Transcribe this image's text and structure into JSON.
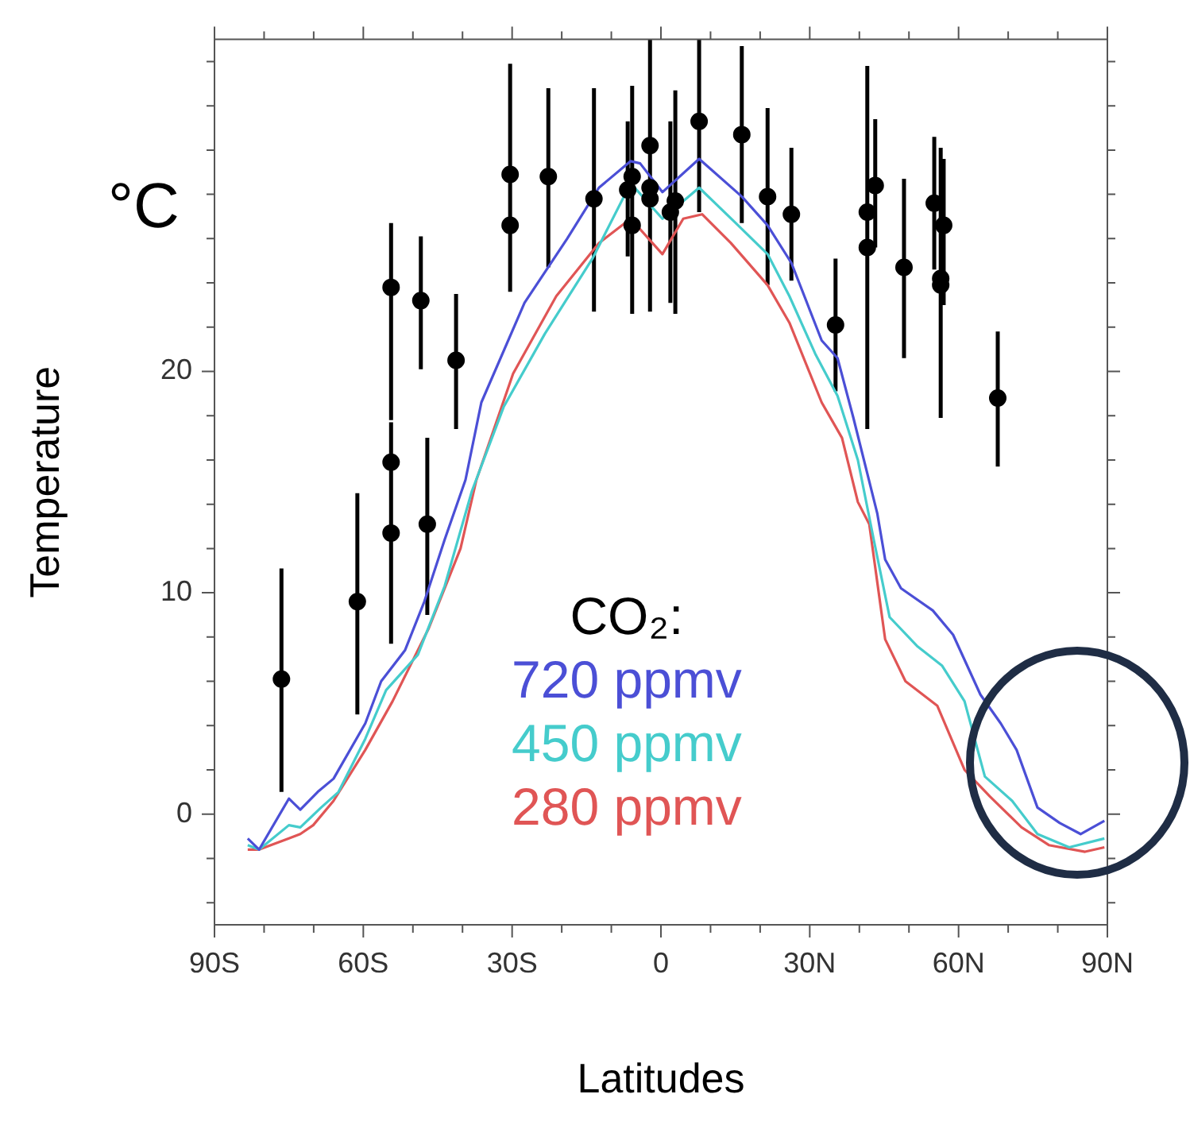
{
  "chart_data": {
    "type": "line",
    "xlabel": "Latitudes",
    "ylabel": "Temperature",
    "legend_title": "CO₂:",
    "legend": "bottom",
    "grid": false,
    "annotations": [
      "°C"
    ],
    "xlim": [
      -90,
      90
    ],
    "ylim": [
      -5,
      35
    ],
    "xticks": [
      {
        "value": -90,
        "label": "90S"
      },
      {
        "value": -80,
        "label": null
      },
      {
        "value": -70,
        "label": null
      },
      {
        "value": -60,
        "label": "60S"
      },
      {
        "value": -50,
        "label": null
      },
      {
        "value": -40,
        "label": null
      },
      {
        "value": -30,
        "label": "30S"
      },
      {
        "value": -20,
        "label": null
      },
      {
        "value": -10,
        "label": null
      },
      0,
      {
        "value": 10,
        "label": null
      },
      {
        "value": 20,
        "label": null
      },
      {
        "value": 30,
        "label": "30N"
      },
      {
        "value": 40,
        "label": null
      },
      {
        "value": 50,
        "label": null
      },
      {
        "value": 60,
        "label": "60N"
      },
      {
        "value": 70,
        "label": null
      },
      {
        "value": 80,
        "label": null
      },
      {
        "value": 90,
        "label": "90N"
      }
    ],
    "yticks": [
      {
        "value": -4,
        "label": null
      },
      {
        "value": -2,
        "label": null
      },
      0,
      {
        "value": 2,
        "label": null
      },
      {
        "value": 4,
        "label": null
      },
      {
        "value": 6,
        "label": null
      },
      {
        "value": 8,
        "label": null
      },
      10,
      {
        "value": 12,
        "label": null
      },
      {
        "value": 14,
        "label": null
      },
      {
        "value": 16,
        "label": null
      },
      {
        "value": 18,
        "label": null
      },
      20,
      {
        "value": 22,
        "label": null
      },
      {
        "value": 24,
        "label": null
      },
      {
        "value": 26,
        "label": null
      },
      {
        "value": 28,
        "label": null
      },
      {
        "value": 30,
        "label": null
      },
      {
        "value": 32,
        "label": null
      },
      {
        "value": 34,
        "label": null
      }
    ],
    "series": [
      {
        "name": "720 ppmv",
        "color": "#4b4fd6",
        "x": [
          -83.3,
          -81.0,
          -75.0,
          -72.7,
          -69.2,
          -66.0,
          -59.6,
          -56.4,
          -51.6,
          -47.7,
          -43.6,
          -39.4,
          -36.2,
          -27.5,
          -18.9,
          -12.5,
          -6.1,
          -4.2,
          0.3,
          7.7,
          16.3,
          21.5,
          26.3,
          32.4,
          35.6,
          38.8,
          43.6,
          45.2,
          48.4,
          54.8,
          58.9,
          64.4,
          68.5,
          71.7,
          75.9,
          80.4,
          84.6,
          89.4
        ],
        "values": [
          -1.1,
          -1.6,
          0.7,
          0.2,
          1.0,
          1.6,
          4.1,
          6.0,
          7.4,
          9.6,
          12.4,
          15.1,
          18.6,
          23.1,
          26.0,
          28.3,
          29.5,
          29.4,
          28.1,
          29.6,
          27.9,
          26.6,
          24.9,
          21.4,
          20.6,
          17.9,
          13.6,
          11.5,
          10.2,
          9.2,
          8.1,
          5.4,
          4.1,
          2.9,
          0.3,
          -0.4,
          -0.9,
          -0.3
        ]
      },
      {
        "name": "450 ppmv",
        "color": "#45cccc",
        "x": [
          -83.3,
          -81.0,
          -75.0,
          -72.7,
          -68.5,
          -65.0,
          -59.6,
          -55.4,
          -49.0,
          -43.6,
          -38.1,
          -31.7,
          -23.4,
          -13.8,
          -6.1,
          0.3,
          7.7,
          15.1,
          21.5,
          25.9,
          31.1,
          35.6,
          39.7,
          42.9,
          46.1,
          51.6,
          56.7,
          61.2,
          65.3,
          70.8,
          75.9,
          82.3,
          89.4
        ],
        "values": [
          -1.4,
          -1.6,
          -0.5,
          -0.6,
          0.3,
          1.0,
          3.4,
          5.6,
          7.2,
          10.3,
          14.6,
          18.4,
          21.7,
          25.1,
          28.5,
          26.9,
          28.3,
          26.7,
          25.3,
          23.4,
          20.8,
          18.9,
          16.0,
          12.4,
          8.9,
          7.6,
          6.7,
          5.1,
          1.7,
          0.6,
          -0.9,
          -1.5,
          -1.1
        ]
      },
      {
        "name": "280 ppmv",
        "color": "#e05555",
        "x": [
          -83.3,
          -81.0,
          -75.0,
          -72.7,
          -70.1,
          -66.0,
          -59.6,
          -54.1,
          -46.8,
          -40.4,
          -37.2,
          -29.8,
          -21.1,
          -12.5,
          -6.1,
          0.3,
          4.5,
          8.3,
          14.1,
          21.5,
          25.9,
          32.4,
          36.5,
          39.7,
          42.0,
          45.2,
          49.3,
          55.7,
          61.2,
          66.3,
          72.7,
          78.2,
          85.5,
          89.4
        ],
        "values": [
          -1.6,
          -1.6,
          -1.1,
          -0.9,
          -0.5,
          0.6,
          2.9,
          5.1,
          8.4,
          12.0,
          15.1,
          19.9,
          23.4,
          25.8,
          26.9,
          25.3,
          26.9,
          27.1,
          25.8,
          23.9,
          22.2,
          18.6,
          17.0,
          14.1,
          13.1,
          7.9,
          6.0,
          4.9,
          2.0,
          0.8,
          -0.6,
          -1.4,
          -1.7,
          -1.5
        ]
      },
      {
        "color": "#000000",
        "type": "scatter",
        "marker": "circle",
        "x": [
          -76.5,
          -61.2,
          -54.4,
          -54.4,
          -54.4,
          -48.4,
          -47.1,
          -41.3,
          -30.4,
          -30.4,
          -22.7,
          -13.5,
          -6.7,
          -5.8,
          -5.8,
          -2.2,
          -2.2,
          -2.2,
          1.9,
          2.9,
          7.7,
          16.3,
          21.5,
          26.3,
          35.2,
          41.6,
          41.6,
          43.2,
          49.0,
          55.1,
          56.4,
          56.4,
          57.0,
          67.9
        ],
        "values": [
          6.1,
          9.6,
          23.8,
          15.9,
          12.7,
          23.2,
          13.1,
          20.5,
          28.9,
          26.6,
          28.8,
          27.8,
          28.2,
          28.8,
          26.6,
          30.2,
          28.3,
          27.8,
          27.2,
          27.7,
          31.3,
          30.7,
          27.9,
          27.1,
          22.1,
          27.2,
          25.6,
          28.4,
          24.7,
          27.6,
          24.2,
          23.9,
          26.6,
          18.8
        ],
        "errors": [
          [
            1.0,
            11.1
          ],
          [
            4.5,
            14.5
          ],
          [
            17.8,
            26.7
          ],
          [
            7.7,
            17.7
          ],
          null,
          [
            20.1,
            26.1
          ],
          [
            9.0,
            17.0
          ],
          [
            17.4,
            23.5
          ],
          [
            23.6,
            33.9
          ],
          null,
          [
            24.7,
            32.8
          ],
          [
            22.7,
            32.8
          ],
          [
            25.2,
            31.3
          ],
          [
            22.6,
            32.9
          ],
          null,
          [
            22.7,
            35
          ],
          null,
          null,
          [
            23.1,
            31.3
          ],
          [
            22.6,
            32.7
          ],
          [
            27.2,
            35
          ],
          [
            26.7,
            34.7
          ],
          [
            23.9,
            31.9
          ],
          [
            24.1,
            30.1
          ],
          [
            19.1,
            25.1
          ],
          [
            17.4,
            33.8
          ],
          null,
          [
            25.6,
            31.4
          ],
          [
            20.6,
            28.7
          ],
          [
            24.6,
            30.6
          ],
          [
            17.9,
            30.1
          ],
          null,
          [
            23.0,
            29.6
          ],
          [
            15.7,
            21.8
          ]
        ]
      }
    ]
  }
}
